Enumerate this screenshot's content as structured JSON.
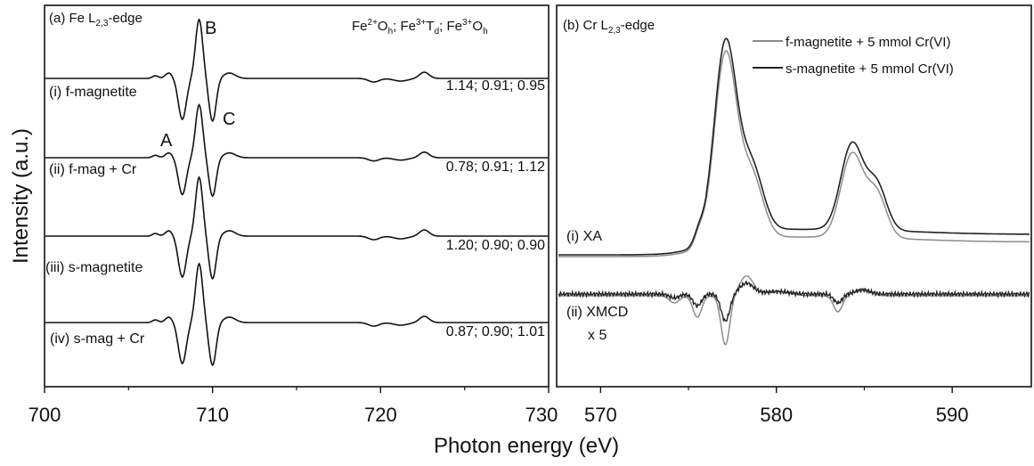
{
  "chart_data": [
    {
      "type": "line",
      "panel_label": "(a) Fe L",
      "panel_label_sub": "2,3",
      "panel_label_tail": "-edge",
      "x_range": [
        700,
        730
      ],
      "x_ticks": [
        "700",
        "710",
        "720",
        "730"
      ],
      "header": {
        "p1": "Fe",
        "p1_sup": "2+",
        "p1_o": "O",
        "p1_sub": "h",
        "p2": "; Fe",
        "p2_sup": "3+",
        "p2_o": "T",
        "p2_sub": "d",
        "p3": "; Fe",
        "p3_sup": "3+",
        "p3_o": "O",
        "p3_sub": "h"
      },
      "peak_labels": {
        "A": "A",
        "B": "B",
        "C": "C"
      },
      "series": [
        {
          "name": "(i) f-magnetite",
          "values_text": "1.14; 0.91; 0.95",
          "color": "#111111"
        },
        {
          "name": "(ii) f-mag + Cr",
          "values_text": "0.78; 0.91; 1.12",
          "color": "#111111"
        },
        {
          "name": "(iii) s-magnetite",
          "values_text": "1.20; 0.90; 0.90",
          "color": "#111111"
        },
        {
          "name": "(iv) s-mag + Cr",
          "values_text": "0.87; 0.90; 1.01",
          "color": "#111111"
        }
      ]
    },
    {
      "type": "line",
      "panel_label": "(b) Cr L",
      "panel_label_sub": "2,3",
      "panel_label_tail": "-edge",
      "x_range": [
        567.5,
        594.5
      ],
      "x_ticks": [
        "570",
        "580",
        "590"
      ],
      "series": [
        {
          "name": "f-magnetite + 5 mmol Cr(VI)",
          "color": "#8c8c8c"
        },
        {
          "name": "s-magnetite + 5 mmol Cr(VI)",
          "color": "#222222"
        }
      ],
      "annotations": {
        "xa": "(i) XA",
        "xmcd": "(ii) XMCD",
        "xmcd_scale": "x 5"
      }
    }
  ],
  "axes": {
    "ylabel": "Intensity (a.u.)",
    "xlabel": "Photon energy (eV)"
  }
}
